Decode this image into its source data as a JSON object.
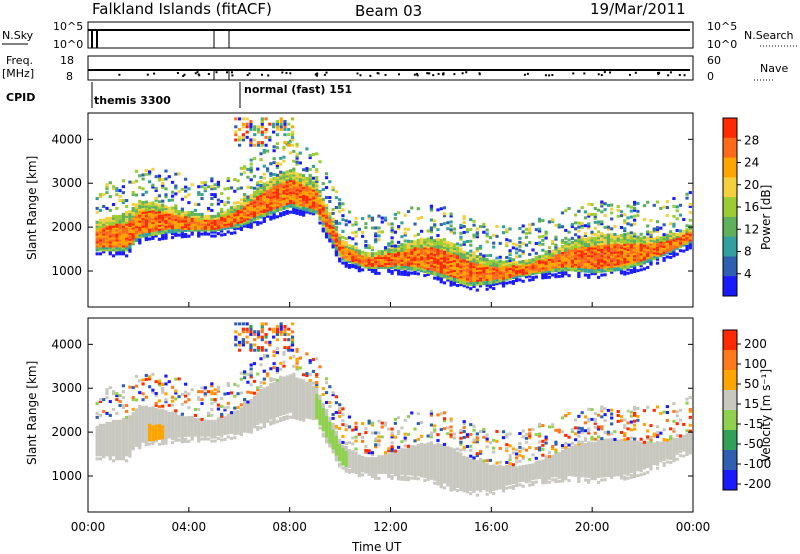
{
  "header": {
    "station": "Falkland Islands (fitACF)",
    "beam": "Beam 03",
    "date": "19/Mar/2011"
  },
  "strips": {
    "nsky_label": "N.Sky",
    "nsky_ticks": [
      "10^5",
      "10^0"
    ],
    "nsearch_label": "N.Search",
    "freq_label_1": "Freq.",
    "freq_label_2": "[MHz]",
    "freq_ticks": [
      "18",
      "8"
    ],
    "nave_label": "Nave",
    "nave_ticks": [
      "60",
      "0"
    ],
    "cpid_label": "CPID",
    "cpid_modes": [
      {
        "name": "themis 3300",
        "start_hour": 0.0
      },
      {
        "name": "normal (fast) 151",
        "start_hour": 6.0
      }
    ]
  },
  "chart_data": [
    {
      "type": "heatmap",
      "name": "power",
      "ylabel": "Slant Range [km]",
      "ylim": [
        180,
        4600
      ],
      "yticks": [
        "1000",
        "2000",
        "3000",
        "4000"
      ],
      "xlim_hours": [
        0,
        24
      ],
      "colorbar_label": "Power [dB]",
      "colorbar_ticks": [
        "4",
        "8",
        "12",
        "16",
        "20",
        "24",
        "28"
      ],
      "colors": [
        "#1a1aff",
        "#2e5fb0",
        "#33a0a0",
        "#5fb05a",
        "#9acd32",
        "#f4d03f",
        "#ffa500",
        "#ff6b1a",
        "#ff2a00"
      ],
      "main_band_lower_edge_km": [
        [
          0.3,
          1500
        ],
        [
          1.5,
          1500
        ],
        [
          2.0,
          1800
        ],
        [
          3.0,
          1900
        ],
        [
          4.0,
          1950
        ],
        [
          5.0,
          1950
        ],
        [
          6.0,
          2050
        ],
        [
          7.0,
          2300
        ],
        [
          8.0,
          2500
        ],
        [
          9.0,
          2350
        ],
        [
          10.0,
          1300
        ],
        [
          11.0,
          1100
        ],
        [
          12.0,
          1100
        ],
        [
          13.0,
          1050
        ],
        [
          14.0,
          900
        ],
        [
          15.0,
          700
        ],
        [
          16.0,
          750
        ],
        [
          17.0,
          900
        ],
        [
          18.0,
          1000
        ],
        [
          19.0,
          1050
        ],
        [
          20.0,
          1000
        ],
        [
          21.0,
          1050
        ],
        [
          22.0,
          1200
        ],
        [
          23.0,
          1450
        ],
        [
          23.9,
          1700
        ]
      ]
    },
    {
      "type": "heatmap",
      "name": "velocity",
      "ylabel": "Slant Range [km]",
      "ylim": [
        180,
        4600
      ],
      "yticks": [
        "1000",
        "2000",
        "3000",
        "4000"
      ],
      "xlim_hours": [
        0,
        24
      ],
      "xticks": [
        "00:00",
        "04:00",
        "08:00",
        "12:00",
        "16:00",
        "20:00",
        "00:00"
      ],
      "xlabel": "Time UT",
      "colorbar_label": "Velocity [m s⁻¹]",
      "colorbar_ticks": [
        "200",
        "100",
        "50",
        "15",
        "-15",
        "-50",
        "-100",
        "-200"
      ],
      "colors": [
        "#1a1aff",
        "#2e5fb0",
        "#33a05a",
        "#8fd14f",
        "#c8c8c0",
        "#ffa500",
        "#ff7a1a",
        "#ff2a00"
      ]
    }
  ]
}
